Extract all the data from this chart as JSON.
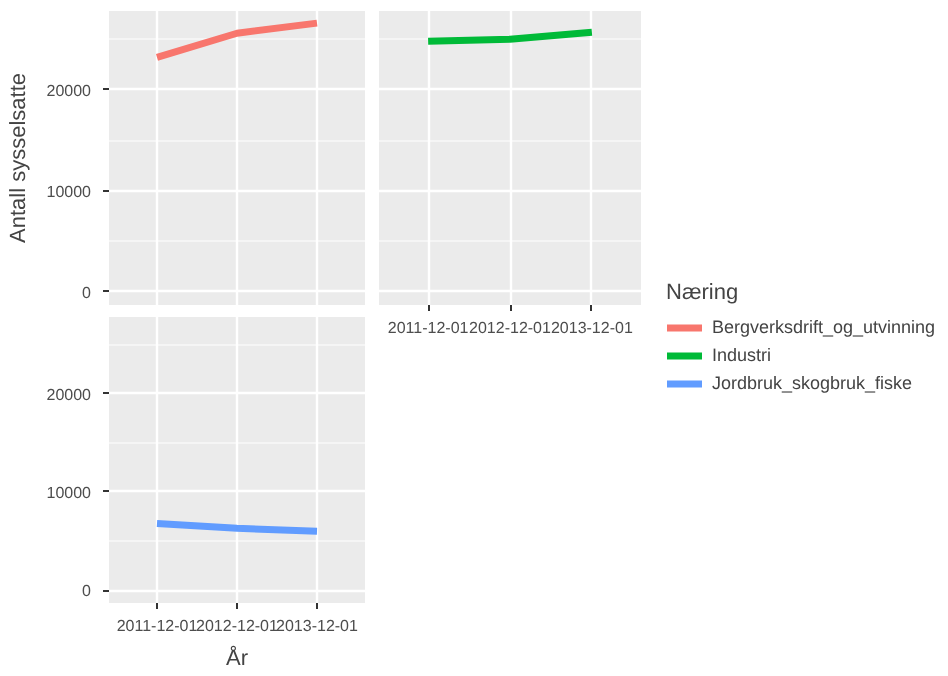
{
  "chart_data": [
    {
      "type": "line",
      "categories": [
        "2011-12-01",
        "2012-12-01",
        "2013-12-01"
      ],
      "ylabel": "Antall sysselsatte",
      "legend_title": "Næring",
      "legend": "right",
      "grid": true,
      "tick_labels": "y",
      "ylim": [
        -1300,
        27800
      ],
      "yticks": [
        0,
        10000,
        20000
      ],
      "series": [
        {
          "name": "Bergverksdrift_og_utvinning",
          "color": "#f8766d",
          "values": [
            23200,
            25600,
            26600
          ]
        }
      ]
    },
    {
      "type": "line",
      "categories": [
        "2011-12-01",
        "2012-12-01",
        "2013-12-01"
      ],
      "grid": true,
      "tick_labels": "x",
      "ylim": [
        -1300,
        27800
      ],
      "yticks": [
        0,
        10000,
        20000
      ],
      "series": [
        {
          "name": "Industri",
          "color": "#00ba38",
          "values": [
            24800,
            25000,
            25700
          ]
        }
      ]
    },
    {
      "type": "line",
      "categories": [
        "2011-12-01",
        "2012-12-01",
        "2013-12-01"
      ],
      "xlabel": "År",
      "grid": true,
      "ylim": [
        -1300,
        27800
      ],
      "yticks": [
        0,
        10000,
        20000
      ],
      "series": [
        {
          "name": "Jordbruk_skogbruk_fiske",
          "color": "#619cff",
          "values": [
            6800,
            6300,
            6000
          ]
        }
      ]
    }
  ]
}
